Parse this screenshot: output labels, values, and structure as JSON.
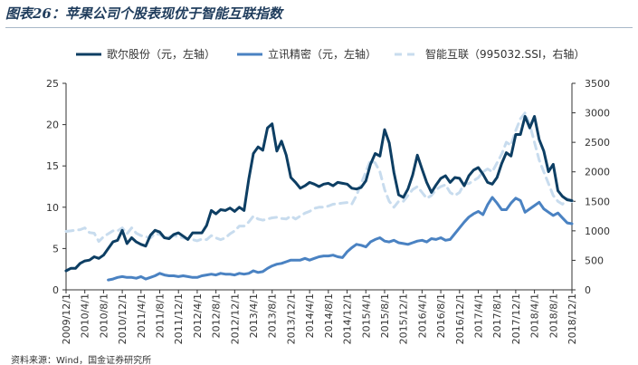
{
  "figure": {
    "title": "图表26：苹果公司个股表现优于智能互联指数",
    "source": "资料来源：Wind，国金证券研究所"
  },
  "colors": {
    "series1": "#0d3e63",
    "series2": "#4a82c2",
    "series3": "#c8dcee",
    "axis": "#333333"
  },
  "chart_data": {
    "type": "line",
    "title": "",
    "legend_position": "top",
    "x_labels": [
      "2009/12/1",
      "2010/4/1",
      "2010/8/1",
      "2010/12/1",
      "2011/4/1",
      "2011/8/1",
      "2011/12/1",
      "2012/4/1",
      "2012/8/1",
      "2012/12/1",
      "2013/4/1",
      "2013/8/1",
      "2013/12/1",
      "2014/4/1",
      "2014/8/1",
      "2014/12/1",
      "2015/4/1",
      "2015/8/1",
      "2015/12/1",
      "2016/4/1",
      "2016/8/1",
      "2016/12/1",
      "2017/4/1",
      "2017/8/1",
      "2017/12/1",
      "2018/4/1",
      "2018/8/1",
      "2018/12/1"
    ],
    "x_range": [
      0,
      108
    ],
    "y_left": {
      "min": 0,
      "max": 25,
      "ticks": [
        0,
        5,
        10,
        15,
        20,
        25
      ]
    },
    "y_right": {
      "min": 0,
      "max": 3500,
      "ticks": [
        0,
        500,
        1000,
        1500,
        2000,
        2500,
        3000,
        3500
      ]
    },
    "series": [
      {
        "name": "歌尔股份（元，左轴）",
        "axis": "left",
        "style": "solid",
        "x": [
          0,
          1,
          2,
          3,
          4,
          5,
          6,
          7,
          8,
          9,
          10,
          11,
          12,
          13,
          14,
          15,
          16,
          17,
          18,
          19,
          20,
          21,
          22,
          23,
          24,
          25,
          26,
          27,
          28,
          29,
          30,
          31,
          32,
          33,
          34,
          35,
          36,
          37,
          38,
          39,
          40,
          41,
          42,
          43,
          44,
          45,
          46,
          47,
          48,
          49,
          50,
          51,
          52,
          53,
          54,
          55,
          56,
          57,
          58,
          59,
          60,
          61,
          62,
          63,
          64,
          65,
          66,
          67,
          68,
          69,
          70,
          71,
          72,
          73,
          74,
          75,
          76,
          77,
          78,
          79,
          80,
          81,
          82,
          83,
          84,
          85,
          86,
          87,
          88,
          89,
          90,
          91,
          92,
          93,
          94,
          95,
          96,
          97,
          98,
          99,
          100,
          101,
          102,
          103,
          104,
          105,
          106,
          107,
          108
        ],
        "values": [
          2.3,
          2.6,
          2.6,
          3.2,
          3.5,
          3.6,
          4.0,
          3.8,
          4.2,
          5.0,
          5.8,
          6.0,
          7.2,
          5.6,
          6.3,
          5.8,
          5.5,
          5.3,
          6.6,
          7.2,
          7.0,
          6.3,
          6.2,
          6.7,
          6.9,
          6.5,
          6.1,
          6.9,
          6.9,
          6.9,
          7.8,
          9.6,
          9.2,
          9.7,
          9.6,
          9.9,
          9.5,
          10.0,
          9.6,
          13.4,
          16.5,
          17.3,
          16.9,
          19.6,
          20.1,
          16.8,
          18.0,
          16.3,
          13.6,
          13.0,
          12.3,
          12.6,
          13.0,
          12.8,
          12.5,
          12.8,
          12.9,
          12.6,
          13.0,
          12.9,
          12.8,
          12.3,
          12.2,
          12.4,
          13.2,
          15.2,
          16.5,
          16.2,
          19.4,
          17.8,
          14.2,
          11.5,
          11.2,
          12.2,
          13.9,
          16.3,
          14.6,
          13.0,
          11.8,
          12.7,
          13.5,
          13.8,
          13.0,
          13.6,
          13.5,
          12.6,
          13.8,
          14.5,
          14.8,
          14.0,
          13.0,
          12.8,
          13.6,
          15.3,
          16.6,
          16.2,
          18.8,
          18.8,
          21.0,
          19.6,
          21.0,
          18.2,
          16.8,
          14.3,
          15.2,
          12.0,
          11.3,
          10.9,
          10.8
        ]
      },
      {
        "name": "立讯精密（元，左轴）",
        "axis": "left",
        "style": "solid",
        "x": [
          9,
          10,
          11,
          12,
          13,
          14,
          15,
          16,
          17,
          18,
          19,
          20,
          21,
          22,
          23,
          24,
          25,
          26,
          27,
          28,
          29,
          30,
          31,
          32,
          33,
          34,
          35,
          36,
          37,
          38,
          39,
          40,
          41,
          42,
          43,
          44,
          45,
          46,
          47,
          48,
          49,
          50,
          51,
          52,
          53,
          54,
          55,
          56,
          57,
          58,
          59,
          60,
          61,
          62,
          63,
          64,
          65,
          66,
          67,
          68,
          69,
          70,
          71,
          72,
          73,
          74,
          75,
          76,
          77,
          78,
          79,
          80,
          81,
          82,
          83,
          84,
          85,
          86,
          87,
          88,
          89,
          90,
          91,
          92,
          93,
          94,
          95,
          96,
          97,
          98,
          99,
          100,
          101,
          102,
          103,
          104,
          105,
          106,
          107,
          108
        ],
        "values": [
          1.2,
          1.3,
          1.5,
          1.6,
          1.5,
          1.5,
          1.4,
          1.6,
          1.3,
          1.5,
          1.7,
          2.0,
          1.8,
          1.7,
          1.7,
          1.6,
          1.7,
          1.6,
          1.5,
          1.5,
          1.7,
          1.8,
          1.9,
          1.8,
          2.0,
          1.9,
          1.9,
          1.8,
          2.0,
          1.9,
          2.0,
          2.3,
          2.1,
          2.2,
          2.6,
          2.9,
          3.1,
          3.2,
          3.4,
          3.6,
          3.6,
          3.6,
          3.8,
          3.6,
          3.8,
          4.0,
          4.1,
          4.1,
          4.2,
          4.0,
          3.9,
          4.6,
          5.1,
          5.5,
          5.4,
          5.2,
          5.8,
          6.1,
          6.3,
          5.9,
          5.8,
          6.0,
          5.7,
          5.6,
          5.5,
          5.7,
          5.9,
          6.0,
          5.8,
          6.2,
          6.1,
          6.3,
          6.0,
          6.1,
          6.8,
          7.5,
          8.2,
          8.8,
          9.2,
          9.5,
          9.1,
          10.3,
          11.2,
          10.5,
          9.7,
          9.7,
          10.5,
          11.1,
          10.8,
          9.4,
          9.8,
          10.2,
          10.6,
          9.8,
          9.4,
          9.0,
          9.3,
          8.7,
          8.1,
          8.0
        ]
      },
      {
        "name": "智能互联（995032.SSI，右轴）",
        "axis": "right",
        "style": "dashed",
        "x": [
          0,
          1,
          2,
          3,
          4,
          5,
          6,
          7,
          8,
          9,
          10,
          11,
          12,
          13,
          14,
          15,
          16,
          17,
          18,
          19,
          20,
          21,
          22,
          23,
          24,
          25,
          26,
          27,
          28,
          29,
          30,
          31,
          32,
          33,
          34,
          35,
          36,
          37,
          38,
          39,
          40,
          41,
          42,
          43,
          44,
          45,
          46,
          47,
          48,
          49,
          50,
          51,
          52,
          53,
          54,
          55,
          56,
          57,
          58,
          59,
          60,
          61,
          62,
          63,
          64,
          65,
          66,
          67,
          68,
          69,
          70,
          71,
          72,
          73,
          74,
          75,
          76,
          77,
          78,
          79,
          80,
          81,
          82,
          83,
          84,
          85,
          86,
          87,
          88,
          89,
          90,
          91,
          92,
          93,
          94,
          95,
          96,
          97,
          98,
          99,
          100,
          101,
          102,
          103,
          104,
          105,
          106,
          107,
          108
        ],
        "values": [
          990,
          1000,
          1010,
          1020,
          1050,
          970,
          960,
          820,
          900,
          950,
          1000,
          1000,
          1050,
          950,
          1050,
          960,
          920,
          900,
          880,
          950,
          940,
          880,
          900,
          920,
          900,
          880,
          860,
          850,
          830,
          860,
          850,
          920,
          880,
          850,
          880,
          950,
          1000,
          1080,
          1080,
          1150,
          1250,
          1200,
          1180,
          1200,
          1220,
          1230,
          1210,
          1200,
          1250,
          1200,
          1250,
          1300,
          1330,
          1380,
          1400,
          1400,
          1420,
          1450,
          1460,
          1470,
          1480,
          1450,
          1600,
          1800,
          2000,
          2200,
          2150,
          2000,
          1700,
          1500,
          1400,
          1500,
          1500,
          1600,
          1700,
          1750,
          1650,
          1550,
          1600,
          1700,
          1750,
          1780,
          1650,
          1600,
          1650,
          1800,
          1800,
          1850,
          1900,
          2000,
          2050,
          2000,
          2150,
          2300,
          2500,
          2450,
          2700,
          2900,
          3000,
          2800,
          2500,
          2200,
          2000,
          1800,
          1600,
          1500,
          1450,
          1550,
          1500
        ]
      }
    ]
  }
}
